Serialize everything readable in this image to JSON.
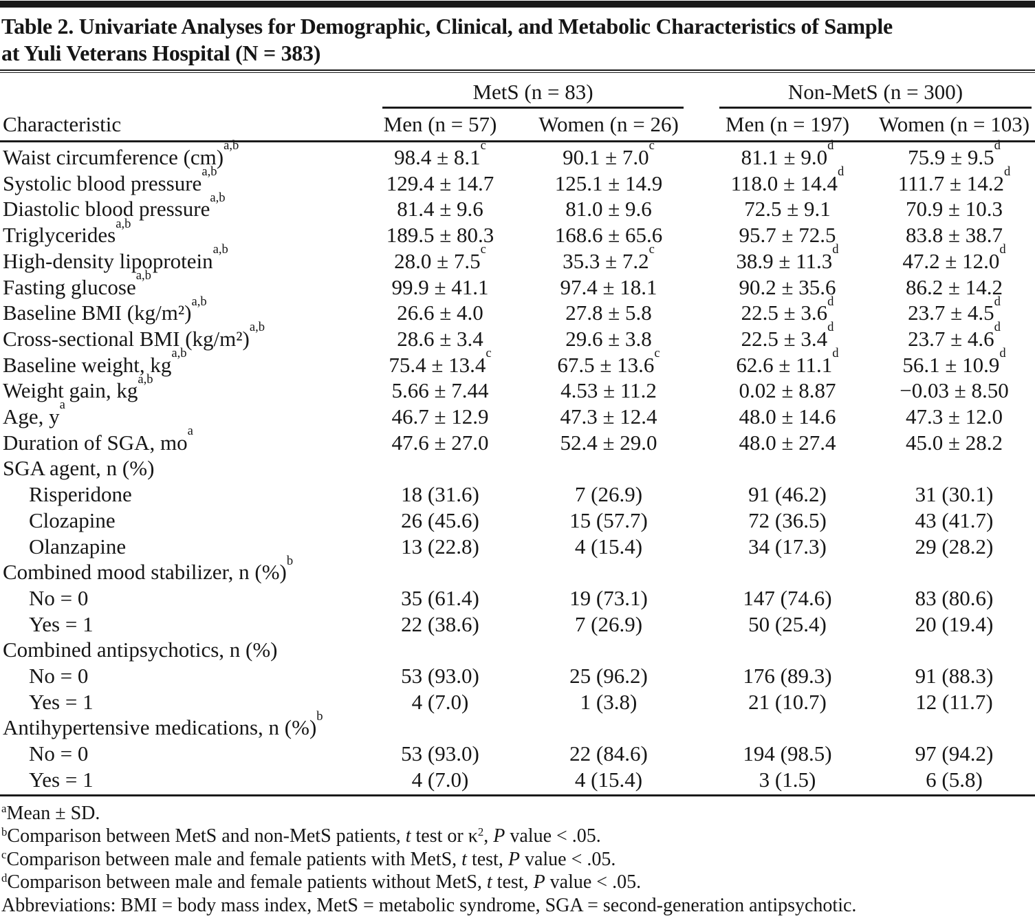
{
  "title": {
    "line1": "Table 2. Univariate Analyses for Demographic, Clinical, and Metabolic Characteristics of Sample",
    "line2": "at Yuli Veterans Hospital (N = 383)"
  },
  "header": {
    "characteristic_label": "Characteristic",
    "groups": [
      {
        "label": "MetS (n = 83)",
        "columns": [
          "Men (n = 57)",
          "Women (n = 26)"
        ]
      },
      {
        "label": "Non-MetS (n = 300)",
        "columns": [
          "Men (n = 197)",
          "Women (n = 103)"
        ]
      }
    ]
  },
  "rows": [
    {
      "label": "Waist circumference (cm)",
      "label_sup": "a,b",
      "indent": false,
      "cells": [
        {
          "value": "98.4 ± 8.1",
          "sup": "c"
        },
        {
          "value": "90.1 ± 7.0",
          "sup": "c"
        },
        {
          "value": "81.1 ± 9.0",
          "sup": "d"
        },
        {
          "value": "75.9 ± 9.5",
          "sup": "d"
        }
      ]
    },
    {
      "label": "Systolic blood pressure",
      "label_sup": "a,b",
      "indent": false,
      "cells": [
        {
          "value": "129.4 ± 14.7",
          "sup": ""
        },
        {
          "value": "125.1 ± 14.9",
          "sup": ""
        },
        {
          "value": "118.0 ± 14.4",
          "sup": "d"
        },
        {
          "value": "111.7 ± 14.2",
          "sup": "d"
        }
      ]
    },
    {
      "label": "Diastolic blood pressure",
      "label_sup": "a,b",
      "indent": false,
      "cells": [
        {
          "value": "81.4 ± 9.6",
          "sup": ""
        },
        {
          "value": "81.0 ± 9.6",
          "sup": ""
        },
        {
          "value": "72.5 ± 9.1",
          "sup": ""
        },
        {
          "value": "70.9 ± 10.3",
          "sup": ""
        }
      ]
    },
    {
      "label": "Triglycerides",
      "label_sup": "a,b",
      "indent": false,
      "cells": [
        {
          "value": "189.5 ± 80.3",
          "sup": ""
        },
        {
          "value": "168.6 ± 65.6",
          "sup": ""
        },
        {
          "value": "95.7 ± 72.5",
          "sup": ""
        },
        {
          "value": "83.8 ± 38.7",
          "sup": ""
        }
      ]
    },
    {
      "label": "High-density lipoprotein",
      "label_sup": "a,b",
      "indent": false,
      "cells": [
        {
          "value": "28.0 ± 7.5",
          "sup": "c"
        },
        {
          "value": "35.3 ± 7.2",
          "sup": "c"
        },
        {
          "value": "38.9 ± 11.3",
          "sup": "d"
        },
        {
          "value": "47.2 ± 12.0",
          "sup": "d"
        }
      ]
    },
    {
      "label": "Fasting glucose",
      "label_sup": "a,b",
      "indent": false,
      "cells": [
        {
          "value": "99.9 ± 41.1",
          "sup": ""
        },
        {
          "value": "97.4 ± 18.1",
          "sup": ""
        },
        {
          "value": "90.2 ± 35.6",
          "sup": ""
        },
        {
          "value": "86.2 ± 14.2",
          "sup": ""
        }
      ]
    },
    {
      "label": "Baseline BMI (kg/m²)",
      "label_sup": "a,b",
      "indent": false,
      "cells": [
        {
          "value": "26.6 ± 4.0",
          "sup": ""
        },
        {
          "value": "27.8 ± 5.8",
          "sup": ""
        },
        {
          "value": "22.5 ± 3.6",
          "sup": "d"
        },
        {
          "value": "23.7 ± 4.5",
          "sup": "d"
        }
      ]
    },
    {
      "label": "Cross-sectional BMI (kg/m²)",
      "label_sup": "a,b",
      "indent": false,
      "cells": [
        {
          "value": "28.6 ± 3.4",
          "sup": ""
        },
        {
          "value": "29.6 ± 3.8",
          "sup": ""
        },
        {
          "value": "22.5 ± 3.4",
          "sup": "d"
        },
        {
          "value": "23.7 ± 4.6",
          "sup": "d"
        }
      ]
    },
    {
      "label": "Baseline weight, kg",
      "label_sup": "a,b",
      "indent": false,
      "cells": [
        {
          "value": "75.4 ± 13.4",
          "sup": "c"
        },
        {
          "value": "67.5 ± 13.6",
          "sup": "c"
        },
        {
          "value": "62.6 ± 11.1",
          "sup": "d"
        },
        {
          "value": "56.1 ± 10.9",
          "sup": "d"
        }
      ]
    },
    {
      "label": "Weight gain, kg",
      "label_sup": "a,b",
      "indent": false,
      "cells": [
        {
          "value": "5.66 ± 7.44",
          "sup": ""
        },
        {
          "value": "4.53 ± 11.2",
          "sup": ""
        },
        {
          "value": "0.02 ± 8.87",
          "sup": ""
        },
        {
          "value": "−0.03 ± 8.50",
          "sup": ""
        }
      ]
    },
    {
      "label": "Age, y",
      "label_sup": "a",
      "indent": false,
      "cells": [
        {
          "value": "46.7 ± 12.9",
          "sup": ""
        },
        {
          "value": "47.3 ± 12.4",
          "sup": ""
        },
        {
          "value": "48.0 ± 14.6",
          "sup": ""
        },
        {
          "value": "47.3 ± 12.0",
          "sup": ""
        }
      ]
    },
    {
      "label": "Duration of SGA, mo",
      "label_sup": "a",
      "indent": false,
      "cells": [
        {
          "value": "47.6 ± 27.0",
          "sup": ""
        },
        {
          "value": "52.4 ± 29.0",
          "sup": ""
        },
        {
          "value": "48.0 ± 27.4",
          "sup": ""
        },
        {
          "value": "45.0 ± 28.2",
          "sup": ""
        }
      ]
    },
    {
      "label": "SGA agent, n (%)",
      "label_sup": "",
      "indent": false,
      "cells": []
    },
    {
      "label": "Risperidone",
      "label_sup": "",
      "indent": true,
      "cells": [
        {
          "value": "18 (31.6)",
          "sup": ""
        },
        {
          "value": "7 (26.9)",
          "sup": ""
        },
        {
          "value": "91 (46.2)",
          "sup": ""
        },
        {
          "value": "31 (30.1)",
          "sup": ""
        }
      ]
    },
    {
      "label": "Clozapine",
      "label_sup": "",
      "indent": true,
      "cells": [
        {
          "value": "26 (45.6)",
          "sup": ""
        },
        {
          "value": "15 (57.7)",
          "sup": ""
        },
        {
          "value": "72 (36.5)",
          "sup": ""
        },
        {
          "value": "43 (41.7)",
          "sup": ""
        }
      ]
    },
    {
      "label": "Olanzapine",
      "label_sup": "",
      "indent": true,
      "cells": [
        {
          "value": "13 (22.8)",
          "sup": ""
        },
        {
          "value": "4 (15.4)",
          "sup": ""
        },
        {
          "value": "34 (17.3)",
          "sup": ""
        },
        {
          "value": "29 (28.2)",
          "sup": ""
        }
      ]
    },
    {
      "label": "Combined mood stabilizer, n (%)",
      "label_sup": "b",
      "indent": false,
      "cells": []
    },
    {
      "label": "No = 0",
      "label_sup": "",
      "indent": true,
      "cells": [
        {
          "value": "35 (61.4)",
          "sup": ""
        },
        {
          "value": "19 (73.1)",
          "sup": ""
        },
        {
          "value": "147 (74.6)",
          "sup": ""
        },
        {
          "value": "83 (80.6)",
          "sup": ""
        }
      ]
    },
    {
      "label": "Yes = 1",
      "label_sup": "",
      "indent": true,
      "cells": [
        {
          "value": "22 (38.6)",
          "sup": ""
        },
        {
          "value": "7 (26.9)",
          "sup": ""
        },
        {
          "value": "50 (25.4)",
          "sup": ""
        },
        {
          "value": "20 (19.4)",
          "sup": ""
        }
      ]
    },
    {
      "label": "Combined antipsychotics, n (%)",
      "label_sup": "",
      "indent": false,
      "cells": []
    },
    {
      "label": "No = 0",
      "label_sup": "",
      "indent": true,
      "cells": [
        {
          "value": "53 (93.0)",
          "sup": ""
        },
        {
          "value": "25 (96.2)",
          "sup": ""
        },
        {
          "value": "176 (89.3)",
          "sup": ""
        },
        {
          "value": "91 (88.3)",
          "sup": ""
        }
      ]
    },
    {
      "label": "Yes = 1",
      "label_sup": "",
      "indent": true,
      "cells": [
        {
          "value": "4 (7.0)",
          "sup": ""
        },
        {
          "value": "1 (3.8)",
          "sup": ""
        },
        {
          "value": "21 (10.7)",
          "sup": ""
        },
        {
          "value": "12 (11.7)",
          "sup": ""
        }
      ]
    },
    {
      "label": "Antihypertensive medications, n (%)",
      "label_sup": "b",
      "indent": false,
      "cells": []
    },
    {
      "label": "No = 0",
      "label_sup": "",
      "indent": true,
      "cells": [
        {
          "value": "53 (93.0)",
          "sup": ""
        },
        {
          "value": "22 (84.6)",
          "sup": ""
        },
        {
          "value": "194 (98.5)",
          "sup": ""
        },
        {
          "value": "97 (94.2)",
          "sup": ""
        }
      ]
    },
    {
      "label": "Yes = 1",
      "label_sup": "",
      "indent": true,
      "cells": [
        {
          "value": "4 (7.0)",
          "sup": ""
        },
        {
          "value": "4 (15.4)",
          "sup": ""
        },
        {
          "value": "3 (1.5)",
          "sup": ""
        },
        {
          "value": "6 (5.8)",
          "sup": ""
        }
      ]
    }
  ],
  "footnotes": [
    {
      "marker": "a",
      "segments": [
        {
          "text": "Mean ± SD."
        }
      ]
    },
    {
      "marker": "b",
      "segments": [
        {
          "text": "Comparison between MetS and non-MetS patients, "
        },
        {
          "text": "t",
          "italic": true
        },
        {
          "text": " test or κ"
        },
        {
          "text": "2",
          "sup": true
        },
        {
          "text": ", "
        },
        {
          "text": "P",
          "italic": true
        },
        {
          "text": " value < .05."
        }
      ]
    },
    {
      "marker": "c",
      "segments": [
        {
          "text": "Comparison between male and female patients with MetS, "
        },
        {
          "text": "t",
          "italic": true
        },
        {
          "text": " test, "
        },
        {
          "text": "P",
          "italic": true
        },
        {
          "text": " value < .05."
        }
      ]
    },
    {
      "marker": "d",
      "segments": [
        {
          "text": "Comparison between male and female patients without MetS, "
        },
        {
          "text": "t",
          "italic": true
        },
        {
          "text": " test, "
        },
        {
          "text": "P",
          "italic": true
        },
        {
          "text": " value < .05."
        }
      ]
    },
    {
      "marker": "",
      "segments": [
        {
          "text": "Abbreviations: BMI = body mass index, MetS = metabolic syndrome, SGA = second-generation antipsychotic."
        }
      ]
    }
  ],
  "colors": {
    "text": "#161616",
    "rule": "#1a1a1a",
    "background": "#ffffff"
  }
}
